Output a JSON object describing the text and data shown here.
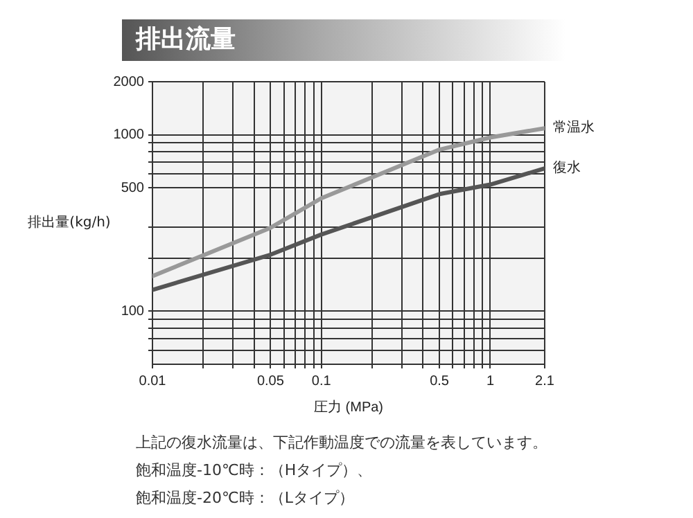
{
  "chart_data": {
    "type": "line",
    "title": "排出流量",
    "xlabel": "圧力 (MPa)",
    "ylabel": "排出量(kg/h)",
    "log": "xy",
    "grid": true,
    "legend": false,
    "marker": "none",
    "line_style": "solid",
    "xlim": [
      0.01,
      2.1
    ],
    "xticks": [
      {
        "value": 0.01,
        "label": "0.01"
      },
      {
        "value": 0.02,
        "label": null
      },
      {
        "value": 0.03,
        "label": null
      },
      {
        "value": 0.04,
        "label": null
      },
      {
        "value": 0.05,
        "label": "0.05"
      },
      {
        "value": 0.06,
        "label": null
      },
      {
        "value": 0.07,
        "label": null
      },
      {
        "value": 0.08,
        "label": null
      },
      {
        "value": 0.09,
        "label": null
      },
      {
        "value": 0.1,
        "label": "0.1"
      },
      {
        "value": 0.2,
        "label": null
      },
      {
        "value": 0.3,
        "label": null
      },
      {
        "value": 0.4,
        "label": null
      },
      {
        "value": 0.5,
        "label": "0.5"
      },
      {
        "value": 0.6,
        "label": null
      },
      {
        "value": 0.7,
        "label": null
      },
      {
        "value": 0.8,
        "label": null
      },
      {
        "value": 0.9,
        "label": null
      },
      1,
      2.1
    ],
    "ylim": [
      50,
      2000
    ],
    "yticks": [
      {
        "value": 60,
        "label": null
      },
      {
        "value": 70,
        "label": null
      },
      {
        "value": 80,
        "label": null
      },
      {
        "value": 90,
        "label": null
      },
      100,
      {
        "value": 200,
        "label": null
      },
      {
        "value": 300,
        "label": null
      },
      500,
      {
        "value": 600,
        "label": null
      },
      {
        "value": 700,
        "label": null
      },
      {
        "value": 800,
        "label": null
      },
      {
        "value": 900,
        "label": null
      },
      1000,
      2000
    ],
    "x": [
      0.01,
      0.05,
      0.1,
      0.5,
      1,
      2.1
    ],
    "series": [
      {
        "name": "常温水",
        "color": "#999999",
        "values": [
          158,
          297,
          437,
          824,
          966,
          1090
        ]
      },
      {
        "name": "復水",
        "color": "#555555",
        "values": [
          132,
          209,
          272,
          461,
          522,
          645
        ]
      }
    ],
    "annotations": [
      "上記の復水流量は、下記作動温度での流量を表しています。",
      "飽和温度-10℃時：（Hタイプ）、",
      "飽和温度-20℃時：（Lタイプ）"
    ]
  }
}
